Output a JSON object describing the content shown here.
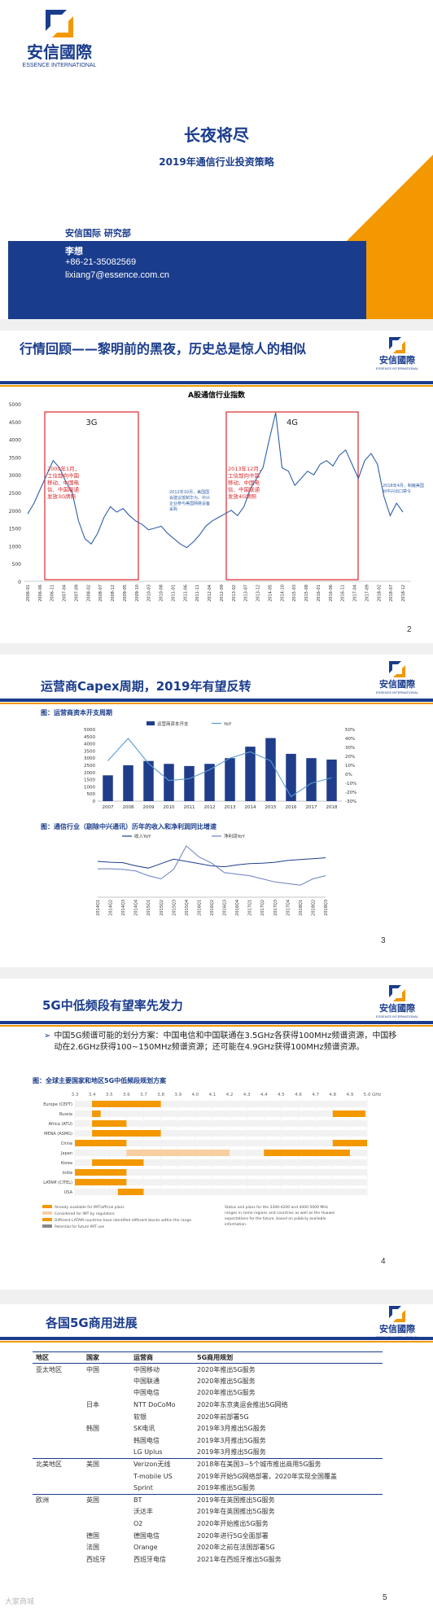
{
  "slide1": {
    "logo_name": "安信國際",
    "logo_sub": "ESSENCE INTERNATIONAL",
    "title": "长夜将尽",
    "subtitle": "2019年通信行业投资策略",
    "dept": "安信国际 研究部",
    "author": "李想",
    "phone": "+86-21-35082569",
    "email": "lixiang7@essence.com.cn"
  },
  "slide2": {
    "title": "行情回顾——黎明前的黑夜，历史总是惊人的相似",
    "page": "2",
    "chart_data": {
      "type": "line",
      "title": "A股通信行业指数",
      "ylim": [
        0,
        5000
      ],
      "yticks": [
        "0",
        "500",
        "1000",
        "1500",
        "2000",
        "2500",
        "3000",
        "3500",
        "4000",
        "4500",
        "5000"
      ],
      "boxes": [
        "3G",
        "4G"
      ],
      "xticks": [
        "2006-01",
        "2006-06",
        "2006-11",
        "2007-04",
        "2007-09",
        "2008-02",
        "2008-07",
        "2008-12",
        "2009-05",
        "2009-10",
        "2010-03",
        "2010-08",
        "2011-01",
        "2011-06",
        "2011-11",
        "2012-04",
        "2012-09",
        "2013-02",
        "2013-07",
        "2013-12",
        "2014-05",
        "2014-10",
        "2015-03",
        "2015-08",
        "2016-01",
        "2016-06",
        "2016-11",
        "2017-04",
        "2017-09",
        "2018-02",
        "2018-07",
        "2018-12"
      ],
      "annotations": [
        "2009年1月，工信部向中国移动、中国电信、中国联通发放3G牌照",
        "2012年10月，美国国会建议抵制华为、中兴企业参与美国网络设备采购",
        "2013年12月，工信部向中国移动、中国电信、中国联通发放4G牌照",
        "2018年4月，制裁美国对中兴出口禁令"
      ],
      "values": [
        1900,
        2200,
        2600,
        3000,
        3400,
        3200,
        2800,
        2500,
        1700,
        1200,
        1050,
        1350,
        1800,
        2100,
        1950,
        2050,
        1850,
        1700,
        1600,
        1450,
        1500,
        1550,
        1350,
        1200,
        1050,
        950,
        1100,
        1300,
        1550,
        1700,
        1800,
        1900,
        2000,
        1850,
        2100,
        2600,
        2900,
        3200,
        4000,
        4750,
        3200,
        3100,
        2700,
        2900,
        3100,
        3000,
        3300,
        3400,
        3250,
        3550,
        3700,
        3300,
        2900,
        3400,
        3600,
        3300,
        2400,
        1850,
        2200,
        1950
      ]
    }
  },
  "slide3": {
    "title": "运营商Capex周期，2019年有望反转",
    "fig1_caption": "图：运营商资本开支周期",
    "fig2_caption": "图：通信行业（剔除中兴通讯）历年的收入和净利润同比增速",
    "page": "3",
    "chart_data": [
      {
        "type": "bar",
        "legend": [
          "运营商资本开支",
          "YoY"
        ],
        "categories": [
          "2007",
          "2008",
          "2009",
          "2010",
          "2011",
          "2012",
          "2013",
          "2014",
          "2015",
          "2016",
          "2017",
          "2018"
        ],
        "values": [
          1800,
          2500,
          2800,
          2600,
          2450,
          2600,
          3000,
          3800,
          4400,
          3300,
          3000,
          2900
        ],
        "yoy": [
          15,
          40,
          12,
          -7,
          -5,
          5,
          18,
          25,
          15,
          -25,
          -10,
          -4
        ],
        "ylim": [
          0,
          5000
        ],
        "yticks": [
          "0",
          "500",
          "1000",
          "1500",
          "2000",
          "2500",
          "3000",
          "3500",
          "4000",
          "4500",
          "5000"
        ],
        "y2ticks": [
          "50%",
          "40%",
          "30%",
          "20%",
          "10%",
          "0%",
          "-10%",
          "-20%",
          "-30%"
        ]
      },
      {
        "type": "line",
        "legend": [
          "收入YoY",
          "净利润YoY"
        ],
        "xticks": [
          "2014Q1",
          "2014Q2",
          "2014Q3",
          "2014Q4",
          "2015Q1",
          "2015Q2",
          "2015Q3",
          "2015Q4",
          "2016Q1",
          "2016Q2",
          "2016Q3",
          "2016Q4",
          "2017Q1",
          "2017Q2",
          "2017Q3",
          "2017Q4",
          "2018Q1",
          "2018Q2",
          "2018Q3"
        ]
      }
    ]
  },
  "slide4": {
    "title": "5G中低频段有望率先发力",
    "bullet": "中国5G频谱可能的划分方案：中国电信和中国联通在3.5GHz各获得100MHz频谱资源，中国移动在2.6GHz获得100~150MHz频谱资源；还可能在4.9GHz获得100MHz频谱资源。",
    "fig_caption": "图：全球主要国家和地区5G中低频段规划方案",
    "freq_ticks": [
      "3.3",
      "3.4",
      "3.5",
      "3.6",
      "3.7",
      "3.8",
      "3.9",
      "4.0",
      "4.1",
      "4.2",
      "4.3",
      "4.4",
      "4.5",
      "4.6",
      "4.7",
      "4.8",
      "4.9",
      "5.0"
    ],
    "freq_unit": "GHz",
    "regions": [
      "Europe (CEPT)",
      "Russia",
      "Africa (ATU)",
      "MENA (ASMG)",
      "China",
      "Japan",
      "Korea",
      "India",
      "LATAM (CITEL)",
      "USA"
    ],
    "legend": [
      "Already available for IMT/official plans",
      "Considered for IMT by regulators",
      "Different LATAM countries have identified different blocks within the range",
      "Potential for future IMT use"
    ],
    "note": "Status and plans for the 3300-4200 and 4400-5000 MHz ranges in some regions and countries as well as the Huawei expectations for the future, based on publicly available information.",
    "page": "4"
  },
  "slide5": {
    "title": "各国5G商用进展",
    "headers": [
      "地区",
      "国家",
      "运营商",
      "5G商用规划"
    ],
    "rows": [
      {
        "region": "亚太地区",
        "country": "中国",
        "operator": "中国移动",
        "plan": "2020年推出5G服务"
      },
      {
        "region": "",
        "country": "",
        "operator": "中国联通",
        "plan": "2020年推出5G服务"
      },
      {
        "region": "",
        "country": "",
        "operator": "中国电信",
        "plan": "2020年推出5G服务"
      },
      {
        "region": "",
        "country": "日本",
        "operator": "NTT DoCoMo",
        "plan": "2020年东京奥运会推出5G网络"
      },
      {
        "region": "",
        "country": "",
        "operator": "软银",
        "plan": "2020年前部署5G"
      },
      {
        "region": "",
        "country": "韩国",
        "operator": "SK电讯",
        "plan": "2019年3月推出5G服务"
      },
      {
        "region": "",
        "country": "",
        "operator": "韩国电信",
        "plan": "2019年3月推出5G服务"
      },
      {
        "region": "",
        "country": "",
        "operator": "LG Uplus",
        "plan": "2019年3月推出5G服务"
      },
      {
        "region": "北美地区",
        "country": "美国",
        "operator": "Verizon无线",
        "plan": "2018年在美国3~5个城市推出商用5G服务"
      },
      {
        "region": "",
        "country": "",
        "operator": "T-mobile US",
        "plan": "2019年开始5G网络部署，2020年实现全国覆盖"
      },
      {
        "region": "",
        "country": "",
        "operator": "Sprint",
        "plan": "2019年推出5G服务"
      },
      {
        "region": "欧洲",
        "country": "英国",
        "operator": "BT",
        "plan": "2019年在英国推出5G服务"
      },
      {
        "region": "",
        "country": "",
        "operator": "沃达丰",
        "plan": "2019年在英国推出5G服务"
      },
      {
        "region": "",
        "country": "",
        "operator": "O2",
        "plan": "2020年开始推出5G服务"
      },
      {
        "region": "",
        "country": "德国",
        "operator": "德国电信",
        "plan": "2020年进行5G全面部署"
      },
      {
        "region": "",
        "country": "法国",
        "operator": "Orange",
        "plan": "2020年之前在法国部署5G"
      },
      {
        "region": "",
        "country": "西班牙",
        "operator": "西班牙电信",
        "plan": "2021年在西班牙推出5G服务"
      }
    ],
    "page": "5"
  },
  "watermark": "大家商城"
}
